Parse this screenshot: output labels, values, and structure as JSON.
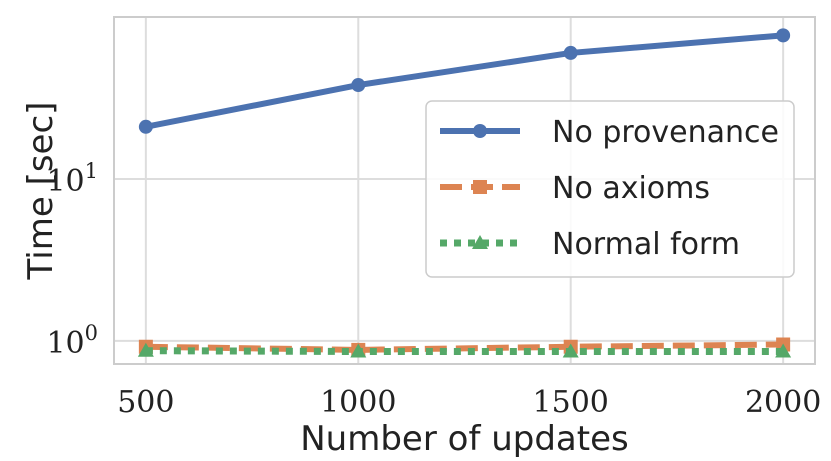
{
  "chart_data": {
    "type": "line",
    "title": "",
    "xlabel": "Number of updates",
    "ylabel": "Time [sec]",
    "x": [
      500,
      1000,
      1500,
      2000
    ],
    "x_ticks": [
      500,
      1000,
      1500,
      2000
    ],
    "xlim": [
      425,
      2075
    ],
    "yscale": "log",
    "ylim": [
      0.72,
      100
    ],
    "y_ticks": [
      {
        "value": 1,
        "base": "10",
        "exp": "0"
      },
      {
        "value": 10,
        "base": "10",
        "exp": "1"
      }
    ],
    "grid": true,
    "legend_position": "center-right",
    "series": [
      {
        "name": "No provenance",
        "values": [
          21,
          38,
          60,
          77
        ],
        "color": "#4c72b0",
        "dash": "solid",
        "marker": "circle"
      },
      {
        "name": "No axioms",
        "values": [
          0.92,
          0.88,
          0.92,
          0.95
        ],
        "color": "#dd8452",
        "dash": "dashed",
        "marker": "square"
      },
      {
        "name": "Normal form",
        "values": [
          0.87,
          0.86,
          0.86,
          0.86
        ],
        "color": "#55a868",
        "dash": "dotted",
        "marker": "triangle"
      }
    ]
  }
}
